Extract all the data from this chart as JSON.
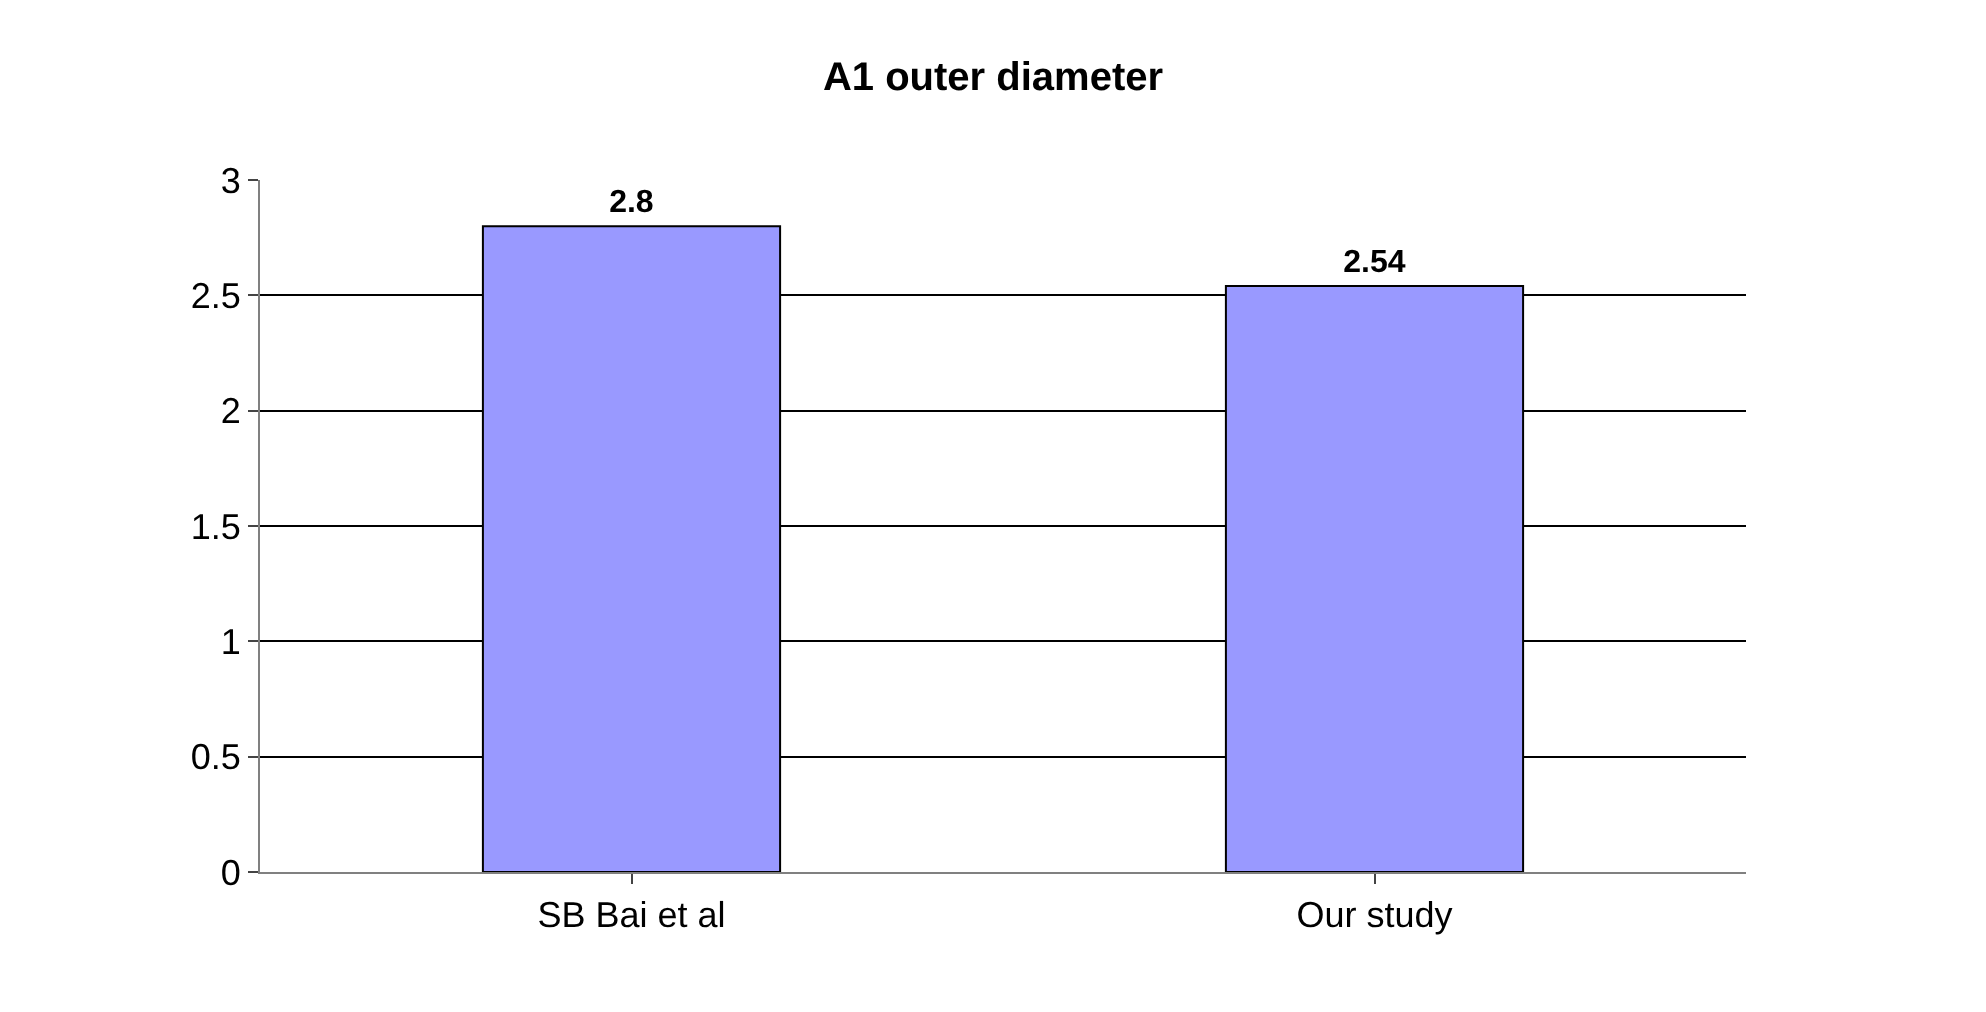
{
  "chart_data": {
    "type": "bar",
    "title": "A1 outer diameter",
    "categories": [
      "SB Bai et al",
      "Our study"
    ],
    "values": [
      2.8,
      2.54
    ],
    "color": "#9999ff",
    "ylim": [
      0,
      3
    ],
    "yticks": [
      0,
      0.5,
      1,
      1.5,
      2,
      2.5,
      3
    ],
    "grid": "y",
    "data_labels": true
  }
}
